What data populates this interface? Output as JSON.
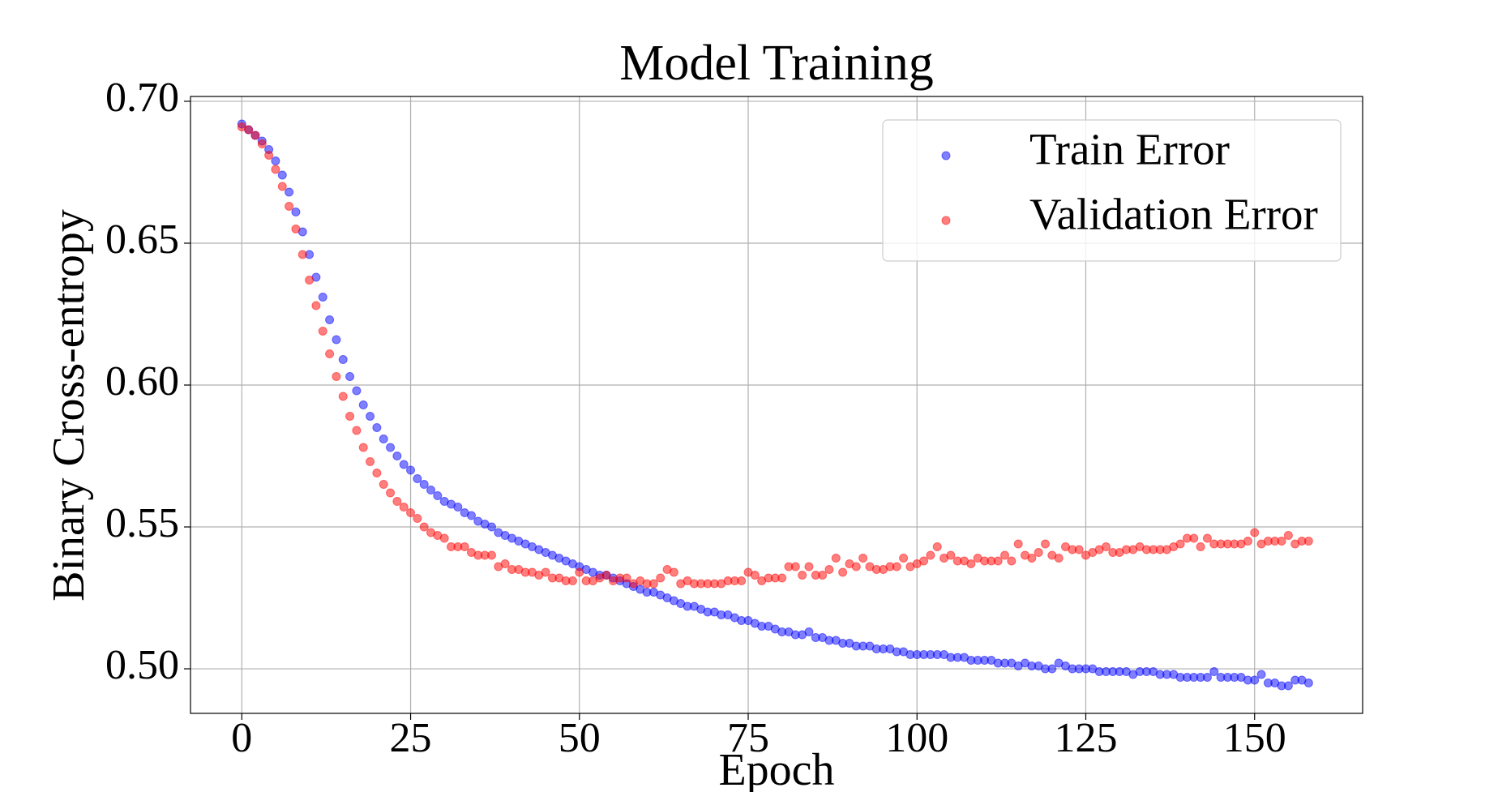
{
  "chart_data": {
    "type": "scatter",
    "title": "Model Training",
    "x_label": "Epoch",
    "y_label": "Binary Cross-entropy",
    "x": [
      0,
      1,
      2,
      3,
      4,
      5,
      6,
      7,
      8,
      9,
      10,
      11,
      12,
      13,
      14,
      15,
      16,
      17,
      18,
      19,
      20,
      21,
      22,
      23,
      24,
      25,
      26,
      27,
      28,
      29,
      30,
      31,
      32,
      33,
      34,
      35,
      36,
      37,
      38,
      39,
      40,
      41,
      42,
      43,
      44,
      45,
      46,
      47,
      48,
      49,
      50,
      51,
      52,
      53,
      54,
      55,
      56,
      57,
      58,
      59,
      60,
      61,
      62,
      63,
      64,
      65,
      66,
      67,
      68,
      69,
      70,
      71,
      72,
      73,
      74,
      75,
      76,
      77,
      78,
      79,
      80,
      81,
      82,
      83,
      84,
      85,
      86,
      87,
      88,
      89,
      90,
      91,
      92,
      93,
      94,
      95,
      96,
      97,
      98,
      99,
      100,
      101,
      102,
      103,
      104,
      105,
      106,
      107,
      108,
      109,
      110,
      111,
      112,
      113,
      114,
      115,
      116,
      117,
      118,
      119,
      120,
      121,
      122,
      123,
      124,
      125,
      126,
      127,
      128,
      129,
      130,
      131,
      132,
      133,
      134,
      135,
      136,
      137,
      138,
      139,
      140,
      141,
      142,
      143,
      144,
      145,
      146,
      147,
      148,
      149,
      150,
      151,
      152,
      153,
      154,
      155,
      156,
      157,
      158
    ],
    "series": [
      {
        "name": "Train Error",
        "color": "#0000ff",
        "values": [
          0.692,
          0.69,
          0.688,
          0.686,
          0.683,
          0.679,
          0.674,
          0.668,
          0.661,
          0.654,
          0.646,
          0.638,
          0.631,
          0.623,
          0.616,
          0.609,
          0.603,
          0.598,
          0.593,
          0.589,
          0.585,
          0.581,
          0.578,
          0.575,
          0.572,
          0.57,
          0.567,
          0.565,
          0.563,
          0.561,
          0.559,
          0.558,
          0.557,
          0.555,
          0.554,
          0.552,
          0.551,
          0.55,
          0.548,
          0.547,
          0.546,
          0.545,
          0.544,
          0.543,
          0.542,
          0.541,
          0.54,
          0.539,
          0.538,
          0.537,
          0.536,
          0.535,
          0.534,
          0.533,
          0.533,
          0.532,
          0.531,
          0.53,
          0.529,
          0.528,
          0.527,
          0.527,
          0.526,
          0.525,
          0.524,
          0.523,
          0.522,
          0.522,
          0.521,
          0.52,
          0.52,
          0.519,
          0.519,
          0.518,
          0.517,
          0.517,
          0.516,
          0.515,
          0.515,
          0.514,
          0.513,
          0.513,
          0.512,
          0.512,
          0.513,
          0.511,
          0.511,
          0.51,
          0.51,
          0.509,
          0.509,
          0.508,
          0.508,
          0.508,
          0.507,
          0.507,
          0.507,
          0.506,
          0.506,
          0.505,
          0.505,
          0.505,
          0.505,
          0.505,
          0.505,
          0.504,
          0.504,
          0.504,
          0.503,
          0.503,
          0.503,
          0.503,
          0.502,
          0.502,
          0.502,
          0.501,
          0.502,
          0.501,
          0.501,
          0.5,
          0.5,
          0.502,
          0.501,
          0.5,
          0.5,
          0.5,
          0.5,
          0.499,
          0.499,
          0.499,
          0.499,
          0.499,
          0.498,
          0.499,
          0.499,
          0.499,
          0.498,
          0.498,
          0.498,
          0.497,
          0.497,
          0.497,
          0.497,
          0.497,
          0.499,
          0.497,
          0.497,
          0.497,
          0.497,
          0.496,
          0.496,
          0.498,
          0.495,
          0.495,
          0.494,
          0.494,
          0.496,
          0.496,
          0.495
        ]
      },
      {
        "name": "Validation Error",
        "color": "#ff0000",
        "values": [
          0.691,
          0.69,
          0.688,
          0.685,
          0.681,
          0.676,
          0.67,
          0.663,
          0.655,
          0.646,
          0.637,
          0.628,
          0.619,
          0.611,
          0.603,
          0.596,
          0.589,
          0.584,
          0.578,
          0.573,
          0.569,
          0.565,
          0.562,
          0.559,
          0.557,
          0.555,
          0.553,
          0.55,
          0.548,
          0.547,
          0.546,
          0.543,
          0.543,
          0.543,
          0.541,
          0.54,
          0.54,
          0.54,
          0.536,
          0.537,
          0.535,
          0.535,
          0.534,
          0.534,
          0.533,
          0.534,
          0.532,
          0.532,
          0.531,
          0.531,
          0.534,
          0.531,
          0.531,
          0.532,
          0.533,
          0.531,
          0.532,
          0.532,
          0.53,
          0.531,
          0.53,
          0.53,
          0.532,
          0.535,
          0.534,
          0.53,
          0.531,
          0.53,
          0.53,
          0.53,
          0.53,
          0.53,
          0.531,
          0.531,
          0.531,
          0.534,
          0.533,
          0.531,
          0.532,
          0.532,
          0.532,
          0.536,
          0.536,
          0.533,
          0.536,
          0.533,
          0.533,
          0.535,
          0.539,
          0.534,
          0.537,
          0.536,
          0.539,
          0.536,
          0.535,
          0.535,
          0.536,
          0.536,
          0.539,
          0.536,
          0.537,
          0.538,
          0.54,
          0.543,
          0.539,
          0.54,
          0.538,
          0.538,
          0.537,
          0.539,
          0.538,
          0.538,
          0.538,
          0.54,
          0.538,
          0.544,
          0.54,
          0.539,
          0.541,
          0.544,
          0.54,
          0.539,
          0.543,
          0.542,
          0.542,
          0.54,
          0.541,
          0.542,
          0.543,
          0.541,
          0.541,
          0.542,
          0.542,
          0.543,
          0.542,
          0.542,
          0.542,
          0.542,
          0.543,
          0.544,
          0.546,
          0.546,
          0.543,
          0.546,
          0.544,
          0.544,
          0.544,
          0.544,
          0.544,
          0.545,
          0.548,
          0.544,
          0.545,
          0.545,
          0.545,
          0.547,
          0.544,
          0.545,
          0.545
        ]
      }
    ],
    "xlim": [
      -7.6,
      166
    ],
    "ylim": [
      0.4843,
      0.7017
    ],
    "xticks": [
      0,
      25,
      50,
      75,
      100,
      125,
      150
    ],
    "yticks": [
      {
        "value": 0.5,
        "label": "0.50"
      },
      {
        "value": 0.55,
        "label": "0.55"
      },
      {
        "value": 0.6,
        "label": "0.60"
      },
      {
        "value": 0.65,
        "label": "0.65"
      },
      {
        "value": 0.7,
        "label": "0.70"
      }
    ],
    "grid": true,
    "legend": "upper right"
  }
}
